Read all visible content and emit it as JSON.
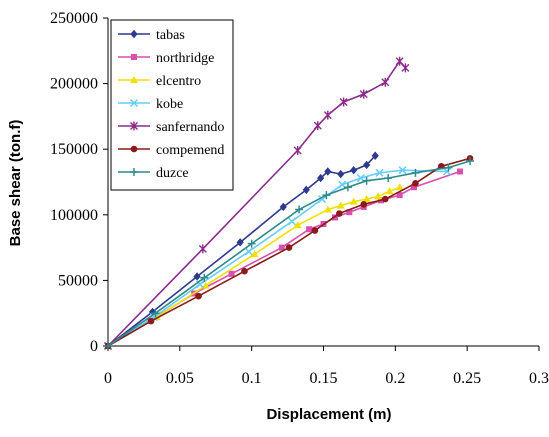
{
  "chart_data": {
    "type": "line",
    "title": "",
    "xlabel": "Displacement (m)",
    "ylabel": "Base shear (ton.f)",
    "xlim": [
      0,
      0.3
    ],
    "ylim": [
      0,
      250000
    ],
    "xticks": [
      "0",
      "0.05",
      "0.1",
      "0.15",
      "0.2",
      "0.25",
      "0.3"
    ],
    "yticks": [
      "0",
      "50000",
      "100000",
      "150000",
      "200000",
      "250000"
    ],
    "grid": false,
    "legend_position": "top-left, inside plot",
    "series": [
      {
        "name": "tabas",
        "color": "#2e3a8c",
        "marker": "diamond",
        "x": [
          0,
          0.031,
          0.062,
          0.092,
          0.122,
          0.138,
          0.148,
          0.153,
          0.162,
          0.171,
          0.18,
          0.186
        ],
        "y": [
          0,
          26000,
          53000,
          79000,
          106000,
          119000,
          128000,
          133000,
          131000,
          134000,
          138000,
          145000
        ]
      },
      {
        "name": "northridge",
        "color": "#d94faf",
        "marker": "square",
        "x": [
          0,
          0.029,
          0.06,
          0.086,
          0.121,
          0.14,
          0.15,
          0.158,
          0.168,
          0.178,
          0.19,
          0.203,
          0.213,
          0.245
        ],
        "y": [
          0,
          19000,
          40000,
          55000,
          75000,
          89000,
          93000,
          98000,
          102000,
          106000,
          111000,
          115000,
          121000,
          133000
        ]
      },
      {
        "name": "elcentro",
        "color": "#f0e000",
        "marker": "triangle",
        "x": [
          0,
          0.034,
          0.068,
          0.102,
          0.132,
          0.153,
          0.162,
          0.171,
          0.18,
          0.188,
          0.196,
          0.203
        ],
        "y": [
          0,
          22000,
          46000,
          70000,
          92000,
          104000,
          107000,
          110000,
          112000,
          114000,
          118000,
          121000
        ]
      },
      {
        "name": "kobe",
        "color": "#66ccff",
        "marker": "x",
        "x": [
          0,
          0.032,
          0.064,
          0.098,
          0.128,
          0.149,
          0.163,
          0.176,
          0.189,
          0.205,
          0.236
        ],
        "y": [
          0,
          22000,
          47000,
          72000,
          95000,
          112000,
          123000,
          128000,
          132000,
          134000,
          133000
        ]
      },
      {
        "name": "sanfernando",
        "color": "#8a2b8a",
        "marker": "star",
        "x": [
          0,
          0.066,
          0.132,
          0.146,
          0.153,
          0.164,
          0.178,
          0.193,
          0.203,
          0.207
        ],
        "y": [
          0,
          74000,
          149000,
          168000,
          176000,
          186000,
          192000,
          201000,
          217000,
          212000
        ]
      },
      {
        "name": "compemend",
        "color": "#8b1a1a",
        "marker": "circle",
        "x": [
          0,
          0.03,
          0.063,
          0.095,
          0.126,
          0.144,
          0.161,
          0.178,
          0.193,
          0.214,
          0.232,
          0.252
        ],
        "y": [
          0,
          19000,
          38000,
          57000,
          75000,
          88000,
          101000,
          108000,
          112000,
          124000,
          137000,
          143000
        ]
      },
      {
        "name": "duzce",
        "color": "#2e8b8b",
        "marker": "plus",
        "x": [
          0,
          0.033,
          0.067,
          0.1,
          0.133,
          0.152,
          0.167,
          0.18,
          0.195,
          0.214,
          0.237,
          0.252
        ],
        "y": [
          0,
          25000,
          52000,
          78000,
          104000,
          115000,
          121000,
          126000,
          128000,
          132000,
          136000,
          141000
        ]
      }
    ]
  }
}
